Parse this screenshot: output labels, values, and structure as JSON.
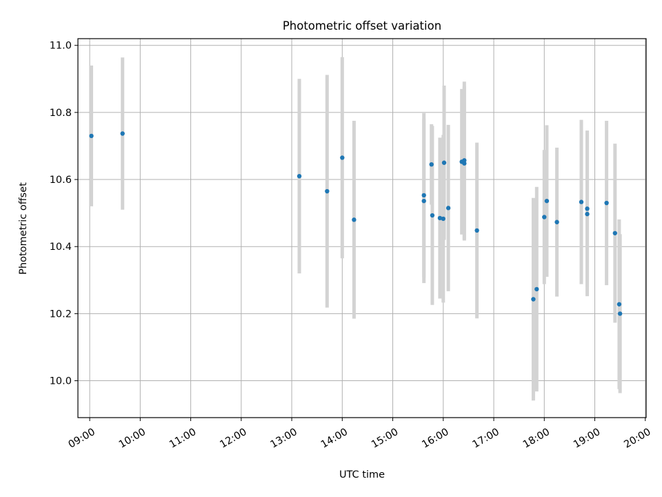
{
  "chart_data": {
    "type": "scatter",
    "title": "Photometric offset variation",
    "xlabel": "UTC time",
    "ylabel": "Photometric offset",
    "xlim": [
      "08:46",
      "20:01"
    ],
    "ylim": [
      9.89,
      11.02
    ],
    "x_ticks": [
      "09:00",
      "10:00",
      "11:00",
      "12:00",
      "13:00",
      "14:00",
      "15:00",
      "16:00",
      "17:00",
      "18:00",
      "19:00",
      "20:00"
    ],
    "y_ticks": [
      10.0,
      10.2,
      10.4,
      10.6,
      10.8,
      11.0
    ],
    "grid": true,
    "marker_color": "#1f77b4",
    "errorbar_color": "#d3d3d3",
    "points": [
      {
        "x": "09:02",
        "y": 10.73,
        "err": 0.21
      },
      {
        "x": "09:39",
        "y": 10.737,
        "err": 0.227
      },
      {
        "x": "13:09",
        "y": 10.61,
        "err": 0.29
      },
      {
        "x": "13:42",
        "y": 10.565,
        "err": 0.347
      },
      {
        "x": "14:00",
        "y": 10.665,
        "err": 0.3
      },
      {
        "x": "14:14",
        "y": 10.48,
        "err": 0.295
      },
      {
        "x": "15:37",
        "y": 10.553,
        "err": 0.245
      },
      {
        "x": "15:37",
        "y": 10.536,
        "err": 0.245
      },
      {
        "x": "15:46",
        "y": 10.645,
        "err": 0.12
      },
      {
        "x": "15:47",
        "y": 10.493,
        "err": 0.267
      },
      {
        "x": "15:56",
        "y": 10.485,
        "err": 0.24
      },
      {
        "x": "16:00",
        "y": 10.483,
        "err": 0.25
      },
      {
        "x": "16:01",
        "y": 10.65,
        "err": 0.23
      },
      {
        "x": "16:06",
        "y": 10.515,
        "err": 0.248
      },
      {
        "x": "16:22",
        "y": 10.653,
        "err": 0.217
      },
      {
        "x": "16:25",
        "y": 10.657,
        "err": 0.235
      },
      {
        "x": "16:25",
        "y": 10.648,
        "err": 0.23
      },
      {
        "x": "16:40",
        "y": 10.448,
        "err": 0.262
      },
      {
        "x": "17:47",
        "y": 10.243,
        "err": 0.302
      },
      {
        "x": "17:51",
        "y": 10.273,
        "err": 0.305
      },
      {
        "x": "18:00",
        "y": 10.488,
        "err": 0.2
      },
      {
        "x": "18:03",
        "y": 10.536,
        "err": 0.226
      },
      {
        "x": "18:15",
        "y": 10.473,
        "err": 0.222
      },
      {
        "x": "18:44",
        "y": 10.533,
        "err": 0.245
      },
      {
        "x": "18:51",
        "y": 10.497,
        "err": 0.245
      },
      {
        "x": "18:51",
        "y": 10.513,
        "err": 0.233
      },
      {
        "x": "19:14",
        "y": 10.53,
        "err": 0.245
      },
      {
        "x": "19:24",
        "y": 10.44,
        "err": 0.267
      },
      {
        "x": "19:29",
        "y": 10.228,
        "err": 0.253
      },
      {
        "x": "19:30",
        "y": 10.2,
        "err": 0.237
      }
    ]
  }
}
